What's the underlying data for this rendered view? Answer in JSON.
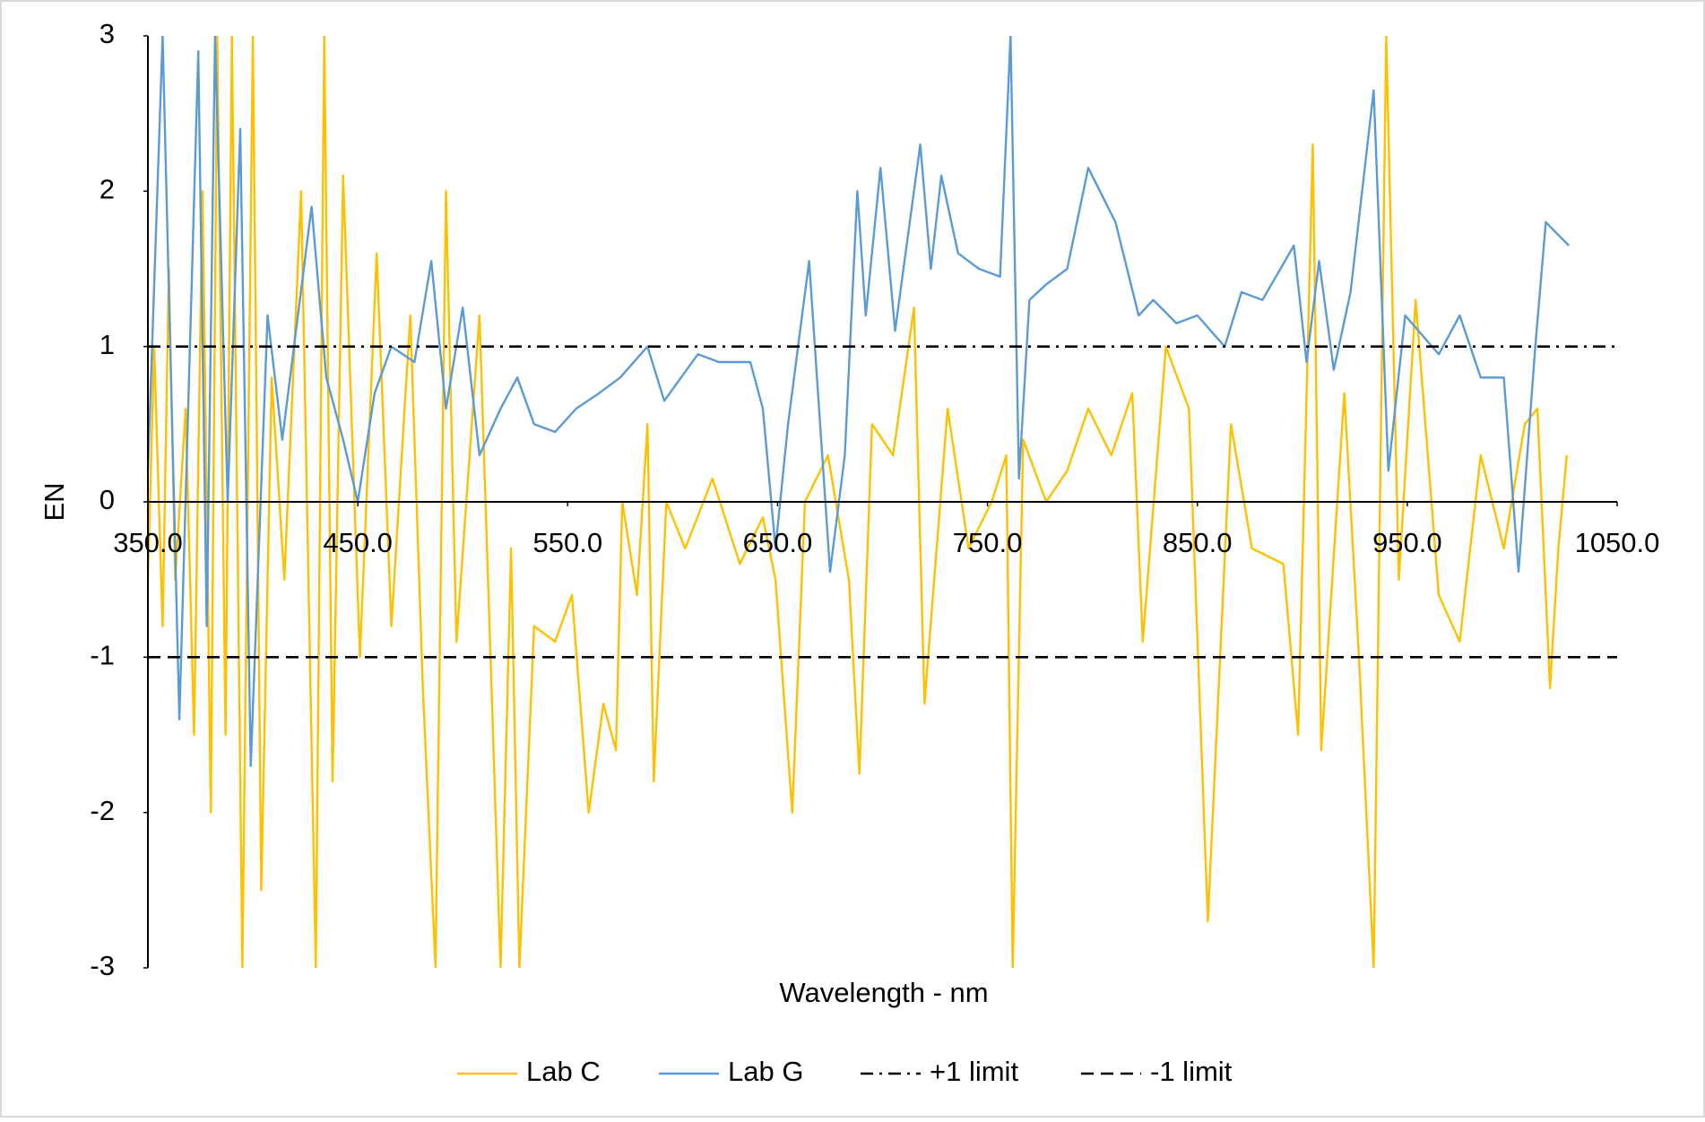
{
  "chart_data": {
    "type": "line",
    "xlabel": "Wavelength - nm",
    "ylabel": "EN",
    "xlim": [
      350,
      1050
    ],
    "xticks": [
      {
        "value": 350,
        "label": "350.0"
      },
      {
        "value": 450,
        "label": "450.0"
      },
      {
        "value": 550,
        "label": "550.0"
      },
      {
        "value": 650,
        "label": "650.0"
      },
      {
        "value": 750,
        "label": "750.0"
      },
      {
        "value": 850,
        "label": "850.0"
      },
      {
        "value": 950,
        "label": "950.0"
      },
      {
        "value": 1050,
        "label": "1050.0"
      }
    ],
    "ylim": [
      -3,
      3
    ],
    "yticks": [
      -3,
      -2,
      -1,
      0,
      1,
      2,
      3
    ],
    "legend": "bottom",
    "series": [
      {
        "name": "Lab C",
        "color": "#FFC000",
        "dash": "solid",
        "x": [
          350,
          353,
          357,
          360,
          363,
          368,
          372,
          376,
          380,
          383,
          387,
          390,
          395,
          400,
          404,
          409,
          415,
          423,
          430,
          434,
          438,
          443,
          451,
          459,
          466,
          475,
          481,
          487,
          492,
          497,
          508,
          518,
          523,
          527,
          534,
          544,
          552,
          560,
          567,
          573,
          576,
          583,
          588,
          591,
          597,
          606,
          619,
          632,
          643,
          649,
          657,
          663,
          674,
          684,
          689,
          695,
          705,
          715,
          720,
          731,
          741,
          752,
          759,
          762,
          767,
          778,
          788,
          798,
          809,
          819,
          824,
          835,
          846,
          855,
          866,
          876,
          891,
          898,
          905,
          909,
          920,
          927,
          934,
          940,
          946,
          954,
          965,
          975,
          985,
          996,
          1006,
          1012,
          1018,
          1022,
          1026
        ],
        "values": [
          -0.5,
          1.0,
          -0.8,
          1.5,
          -0.5,
          0.6,
          -1.5,
          2.0,
          -2.0,
          3.0,
          -1.5,
          3.0,
          -3.0,
          3.0,
          -2.5,
          0.8,
          -0.5,
          2.0,
          -3.0,
          3.0,
          -1.8,
          2.1,
          -1.0,
          1.6,
          -0.8,
          1.2,
          -1.2,
          -3.0,
          2.0,
          -0.9,
          1.2,
          -3.0,
          -0.3,
          -3.0,
          -0.8,
          -0.9,
          -0.6,
          -2.0,
          -1.3,
          -1.6,
          0.0,
          -0.6,
          0.5,
          -1.8,
          0.0,
          -0.3,
          0.15,
          -0.4,
          -0.1,
          -0.5,
          -2.0,
          0.0,
          0.3,
          -0.5,
          -1.75,
          0.5,
          0.3,
          1.25,
          -1.3,
          0.6,
          -0.3,
          0.0,
          0.3,
          -3.0,
          0.4,
          0.0,
          0.2,
          0.6,
          0.3,
          0.7,
          -0.9,
          1.0,
          0.6,
          -2.7,
          0.5,
          -0.3,
          -0.4,
          -1.5,
          2.3,
          -1.6,
          0.7,
          -1.0,
          -3.0,
          3.0,
          -0.5,
          1.3,
          -0.6,
          -0.9,
          0.3,
          -0.3,
          0.5,
          0.6,
          -1.2,
          -0.3,
          0.3
        ]
      },
      {
        "name": "Lab G",
        "color": "#5B9BD5",
        "dash": "solid",
        "x": [
          350,
          357,
          365,
          374,
          378,
          382,
          388,
          394,
          399,
          407,
          414,
          428,
          435,
          443,
          450,
          458,
          466,
          477,
          485,
          492,
          500,
          508,
          518,
          526,
          534,
          544,
          554,
          565,
          575,
          588,
          596,
          612,
          622,
          637,
          643,
          649,
          655,
          665,
          675,
          682,
          688,
          692,
          699,
          706,
          718,
          723,
          728,
          736,
          746,
          756,
          761,
          765,
          770,
          778,
          788,
          798,
          811,
          822,
          829,
          840,
          850,
          863,
          871,
          881,
          896,
          902,
          908,
          915,
          923,
          934,
          941,
          949,
          965,
          975,
          985,
          996,
          1003,
          1011,
          1016,
          1027
        ],
        "values": [
          0.2,
          3.0,
          -1.4,
          2.9,
          -0.8,
          3.0,
          0.0,
          2.4,
          -1.7,
          1.2,
          0.4,
          1.9,
          0.8,
          0.4,
          0.0,
          0.7,
          1.0,
          0.9,
          1.55,
          0.6,
          1.25,
          0.3,
          0.6,
          0.8,
          0.5,
          0.45,
          0.6,
          0.7,
          0.8,
          1.0,
          0.65,
          0.95,
          0.9,
          0.9,
          0.6,
          -0.3,
          0.5,
          1.55,
          -0.45,
          0.3,
          2.0,
          1.2,
          2.15,
          1.1,
          2.3,
          1.5,
          2.1,
          1.6,
          1.5,
          1.45,
          3.0,
          0.15,
          1.3,
          1.4,
          1.5,
          2.15,
          1.8,
          1.2,
          1.3,
          1.15,
          1.2,
          1.0,
          1.35,
          1.3,
          1.65,
          0.9,
          1.55,
          0.85,
          1.35,
          2.65,
          0.2,
          1.2,
          0.95,
          1.2,
          0.8,
          0.8,
          -0.45,
          1.0,
          1.8,
          1.65
        ]
      },
      {
        "name": "+1 limit",
        "color": "#000000",
        "dash": "dashdot",
        "x": [
          350,
          1050
        ],
        "values": [
          1,
          1
        ]
      },
      {
        "name": "-1 limit",
        "color": "#000000",
        "dash": "dashed",
        "x": [
          350,
          1050
        ],
        "values": [
          -1,
          -1
        ]
      }
    ]
  }
}
